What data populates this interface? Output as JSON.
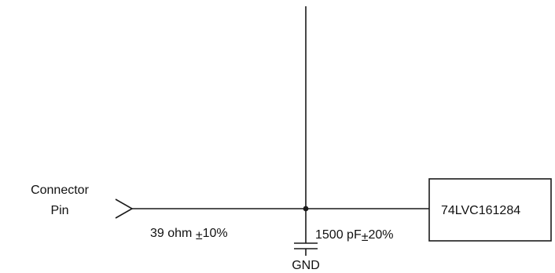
{
  "connector": {
    "line1": "Connector",
    "line2": "Pin"
  },
  "resistor": {
    "value": "39 ohm ",
    "tolerance_sign": "±",
    "tolerance": "10%"
  },
  "capacitor": {
    "value": "1500 pF",
    "tolerance_sign": "±",
    "tolerance": "20%"
  },
  "ground": {
    "label": "GND"
  },
  "chip": {
    "label": "74LVC161284"
  },
  "colors": {
    "line": "#1a1a1a",
    "text": "#111111",
    "background": "#ffffff"
  }
}
